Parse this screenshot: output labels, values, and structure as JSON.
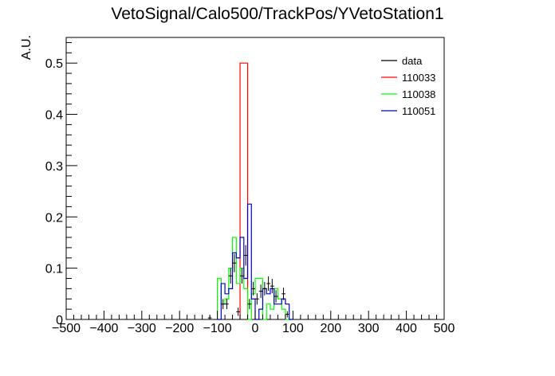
{
  "chart_data": {
    "type": "histogram",
    "title": "VetoSignal/Calo500/TrackPos/YVetoStation1",
    "xlabel": "",
    "ylabel": "A.U.",
    "xlim": [
      -500,
      500
    ],
    "ylim": [
      0,
      0.55
    ],
    "x_ticks": [
      "−500",
      "−400",
      "−300",
      "−200",
      "−100",
      "0",
      "100",
      "200",
      "300",
      "400",
      "500"
    ],
    "y_ticks": [
      "0",
      "0.1",
      "0.2",
      "0.3",
      "0.4",
      "0.5"
    ],
    "legend_position": "top-right",
    "grid": false,
    "series": [
      {
        "name": "data",
        "kind": "points",
        "color": "#000000",
        "points": [
          {
            "x": -120,
            "y": 0.003,
            "xerr": 5,
            "yerr": 0.004
          },
          {
            "x": -85,
            "y": 0.03,
            "xerr": 5,
            "yerr": 0.01
          },
          {
            "x": -75,
            "y": 0.03,
            "xerr": 5,
            "yerr": 0.01
          },
          {
            "x": -65,
            "y": 0.085,
            "xerr": 5,
            "yerr": 0.015
          },
          {
            "x": -55,
            "y": 0.11,
            "xerr": 5,
            "yerr": 0.018
          },
          {
            "x": -45,
            "y": 0.015,
            "xerr": 5,
            "yerr": 0.008
          },
          {
            "x": -35,
            "y": 0.085,
            "xerr": 5,
            "yerr": 0.015
          },
          {
            "x": -25,
            "y": 0.125,
            "xerr": 5,
            "yerr": 0.02
          },
          {
            "x": -15,
            "y": 0.03,
            "xerr": 5,
            "yerr": 0.01
          },
          {
            "x": -5,
            "y": 0.06,
            "xerr": 5,
            "yerr": 0.013
          },
          {
            "x": 5,
            "y": 0.04,
            "xerr": 5,
            "yerr": 0.011
          },
          {
            "x": 15,
            "y": 0.055,
            "xerr": 5,
            "yerr": 0.013
          },
          {
            "x": 25,
            "y": 0.06,
            "xerr": 5,
            "yerr": 0.013
          },
          {
            "x": 35,
            "y": 0.07,
            "xerr": 5,
            "yerr": 0.014
          },
          {
            "x": 45,
            "y": 0.065,
            "xerr": 5,
            "yerr": 0.014
          },
          {
            "x": 55,
            "y": 0.045,
            "xerr": 5,
            "yerr": 0.012
          },
          {
            "x": 75,
            "y": 0.05,
            "xerr": 5,
            "yerr": 0.012
          },
          {
            "x": 85,
            "y": 0.01,
            "xerr": 5,
            "yerr": 0.006
          }
        ]
      },
      {
        "name": "110033",
        "kind": "step",
        "color": "#ff0000",
        "edges": [
          -40,
          -20
        ],
        "values": [
          0.5
        ]
      },
      {
        "name": "110038",
        "kind": "step",
        "color": "#00ff00",
        "edges": [
          -100,
          -90,
          -80,
          -70,
          -60,
          -50,
          -40,
          -30,
          -20,
          -10,
          0,
          10,
          20,
          30,
          40,
          50,
          60,
          70,
          80,
          90,
          100
        ],
        "values": [
          0.08,
          0.03,
          0.04,
          0.1,
          0.16,
          0.07,
          0.1,
          0.06,
          0.0,
          0.05,
          0.08,
          0.08,
          0.0,
          0.03,
          0.02,
          0.06,
          0.04,
          0.02,
          0.0,
          0.0
        ]
      },
      {
        "name": "110051",
        "kind": "step",
        "color": "#0000cc",
        "edges": [
          -100,
          -90,
          -80,
          -70,
          -60,
          -50,
          -40,
          -30,
          -20,
          -10,
          0,
          10,
          20,
          30,
          40,
          50,
          60,
          70,
          80,
          90,
          100
        ],
        "values": [
          0.0,
          0.07,
          0.05,
          0.06,
          0.13,
          0.12,
          0.16,
          0.08,
          0.225,
          0.04,
          0.0,
          0.02,
          0.06,
          0.05,
          0.06,
          0.03,
          0.03,
          0.04,
          0.03,
          0.0
        ]
      }
    ]
  }
}
